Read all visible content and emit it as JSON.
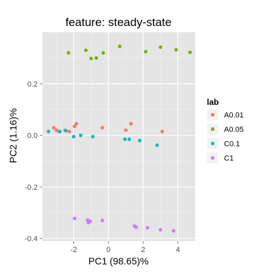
{
  "chart_data": {
    "type": "scatter",
    "title": "feature: steady-state",
    "xlabel": "PC1 (98.65)%",
    "ylabel": "PC2 (1.16)%",
    "xlim": [
      -3.8,
      5.0
    ],
    "ylim": [
      -0.41,
      0.4
    ],
    "xticks": [
      -2,
      0,
      2,
      4
    ],
    "xtick_labels": [
      "-2",
      "0",
      "2",
      "4"
    ],
    "yticks": [
      -0.4,
      -0.2,
      0.0,
      0.2
    ],
    "ytick_labels": [
      "-0.4",
      "-0.2",
      "0.0",
      "0.2"
    ],
    "grid": true,
    "legend": {
      "title": "lab",
      "position": "right"
    },
    "series": [
      {
        "name": "A0.01",
        "color": "#F8766D",
        "points": [
          {
            "x": -3.15,
            "y": 0.03
          },
          {
            "x": -3.0,
            "y": 0.02
          },
          {
            "x": -2.85,
            "y": 0.015
          },
          {
            "x": -2.5,
            "y": 0.02
          },
          {
            "x": -2.25,
            "y": 0.015
          },
          {
            "x": -1.95,
            "y": 0.035
          },
          {
            "x": -1.85,
            "y": 0.045
          },
          {
            "x": -0.35,
            "y": 0.03
          },
          {
            "x": 1.0,
            "y": 0.02
          },
          {
            "x": 1.3,
            "y": 0.045
          },
          {
            "x": 3.1,
            "y": 0.015
          }
        ]
      },
      {
        "name": "A0.05",
        "color": "#7CAE00",
        "points": [
          {
            "x": -2.3,
            "y": 0.32
          },
          {
            "x": -1.3,
            "y": 0.33
          },
          {
            "x": -1.0,
            "y": 0.298
          },
          {
            "x": -0.7,
            "y": 0.3
          },
          {
            "x": -0.3,
            "y": 0.32
          },
          {
            "x": 0.65,
            "y": 0.345
          },
          {
            "x": 2.15,
            "y": 0.325
          },
          {
            "x": 3.0,
            "y": 0.342
          },
          {
            "x": 3.9,
            "y": 0.332
          },
          {
            "x": 4.7,
            "y": 0.322
          }
        ]
      },
      {
        "name": "C0.1",
        "color": "#00BFC4",
        "points": [
          {
            "x": -3.45,
            "y": 0.015
          },
          {
            "x": -2.8,
            "y": 0.015
          },
          {
            "x": -2.45,
            "y": 0.018
          },
          {
            "x": -2.0,
            "y": -0.005
          },
          {
            "x": -1.6,
            "y": 0.0
          },
          {
            "x": -0.9,
            "y": -0.005
          },
          {
            "x": 0.95,
            "y": -0.015
          },
          {
            "x": 1.2,
            "y": -0.015
          },
          {
            "x": 1.8,
            "y": -0.02
          },
          {
            "x": 2.8,
            "y": -0.038
          }
        ]
      },
      {
        "name": "C1",
        "color": "#C77CFF",
        "points": [
          {
            "x": -1.95,
            "y": -0.322
          },
          {
            "x": -1.2,
            "y": -0.328
          },
          {
            "x": -1.15,
            "y": -0.338
          },
          {
            "x": -1.05,
            "y": -0.333
          },
          {
            "x": -0.35,
            "y": -0.33
          },
          {
            "x": 1.5,
            "y": -0.352
          },
          {
            "x": 1.6,
            "y": -0.356
          },
          {
            "x": 2.25,
            "y": -0.358
          },
          {
            "x": 3.0,
            "y": -0.366
          },
          {
            "x": 3.75,
            "y": -0.37
          }
        ]
      }
    ]
  }
}
